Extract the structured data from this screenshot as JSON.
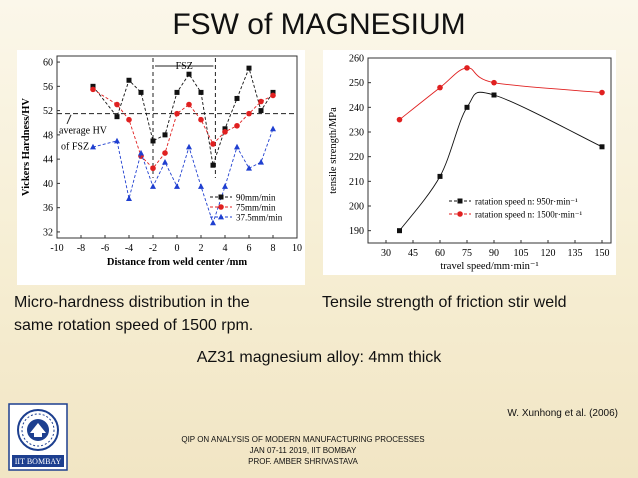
{
  "slide": {
    "title": "FSW of MAGNESIUM",
    "caption_left_line1": "Micro-hardness distribution in the",
    "caption_left_line2": "same rotation speed of 1500 rpm.",
    "caption_right": "Tensile strength of friction stir weld",
    "alloy_note": "AZ31 magnesium alloy: 4mm thick",
    "reference": "W. Xunhong et al. (2006)",
    "footer_line1": "QIP ON ANALYSIS OF MODERN MANUFACTURING PROCESSES",
    "footer_line2": "JAN 07-11 2019, IIT BOMBAY",
    "footer_line3": "PROF. AMBER SHRIVASTAVA",
    "logo_text": "IIT BOMBAY",
    "colors": {
      "logo_blue": "#1d3f8f",
      "series_black": "#111111",
      "series_red": "#e02020",
      "series_blue": "#1f3fd0"
    }
  },
  "chart_data": [
    {
      "type": "line",
      "title": "",
      "xlabel": "Distance from weld center /mm",
      "ylabel": "Vickers Hardness/HV",
      "xlim": [
        -10,
        10
      ],
      "ylim": [
        31,
        61
      ],
      "xticks": [
        -10,
        -8,
        -6,
        -4,
        -2,
        0,
        2,
        4,
        6,
        8,
        10
      ],
      "yticks": [
        32,
        36,
        40,
        44,
        48,
        52,
        56,
        60
      ],
      "annotations": {
        "fsz": "FSZ",
        "average_hv_line1": "average HV",
        "average_hv_line2": "of FSZ"
      },
      "average_hv": 51.5,
      "fsz_range": [
        -2,
        3.2
      ],
      "series": [
        {
          "name": "90mm/min",
          "marker": "square",
          "color": "#111111",
          "x": [
            -7,
            -5,
            -4,
            -3,
            -2,
            -1,
            0,
            1,
            2,
            3,
            4,
            5,
            6,
            7,
            8
          ],
          "y": [
            56,
            51,
            57,
            55,
            47,
            48,
            55,
            58,
            55,
            43,
            49,
            54,
            59,
            52,
            55
          ]
        },
        {
          "name": "75mm/min",
          "marker": "circle",
          "color": "#e02020",
          "x": [
            -7,
            -5,
            -4,
            -3,
            -2,
            -1,
            0,
            1,
            2,
            3,
            4,
            5,
            6,
            7,
            8
          ],
          "y": [
            55.5,
            53,
            50.5,
            44.5,
            42.5,
            45,
            51.5,
            53,
            50.5,
            46.5,
            48.5,
            49.5,
            51.5,
            53.5,
            54.5
          ]
        },
        {
          "name": "37.5mm/min",
          "marker": "triangle",
          "color": "#1f3fd0",
          "x": [
            -7,
            -5,
            -4,
            -3,
            -2,
            -1,
            0,
            1,
            2,
            3,
            4,
            5,
            6,
            7,
            8
          ],
          "y": [
            46,
            47,
            37.5,
            45,
            39.5,
            43.5,
            39.5,
            46,
            39.5,
            33.5,
            39.5,
            46,
            42.5,
            43.5,
            49
          ]
        }
      ]
    },
    {
      "type": "line",
      "title": "",
      "xlabel": "travel speed/mm·min⁻¹",
      "ylabel": "tensile strength/MPa",
      "xlim": [
        20,
        155
      ],
      "ylim": [
        185,
        260
      ],
      "xticks": [
        30,
        45,
        60,
        75,
        90,
        105,
        120,
        135,
        150
      ],
      "yticks": [
        190,
        200,
        210,
        220,
        230,
        240,
        250,
        260
      ],
      "series": [
        {
          "name": "ratation speed n: 950r·min⁻¹",
          "marker": "square",
          "color": "#111111",
          "x": [
            37.5,
            60,
            75,
            90,
            150
          ],
          "y": [
            190,
            212,
            240,
            245,
            224
          ]
        },
        {
          "name": "ratation speed n: 1500r·min⁻¹",
          "marker": "circle",
          "color": "#e02020",
          "x": [
            37.5,
            60,
            75,
            90,
            150
          ],
          "y": [
            235,
            248,
            256,
            250,
            246
          ]
        }
      ]
    }
  ]
}
